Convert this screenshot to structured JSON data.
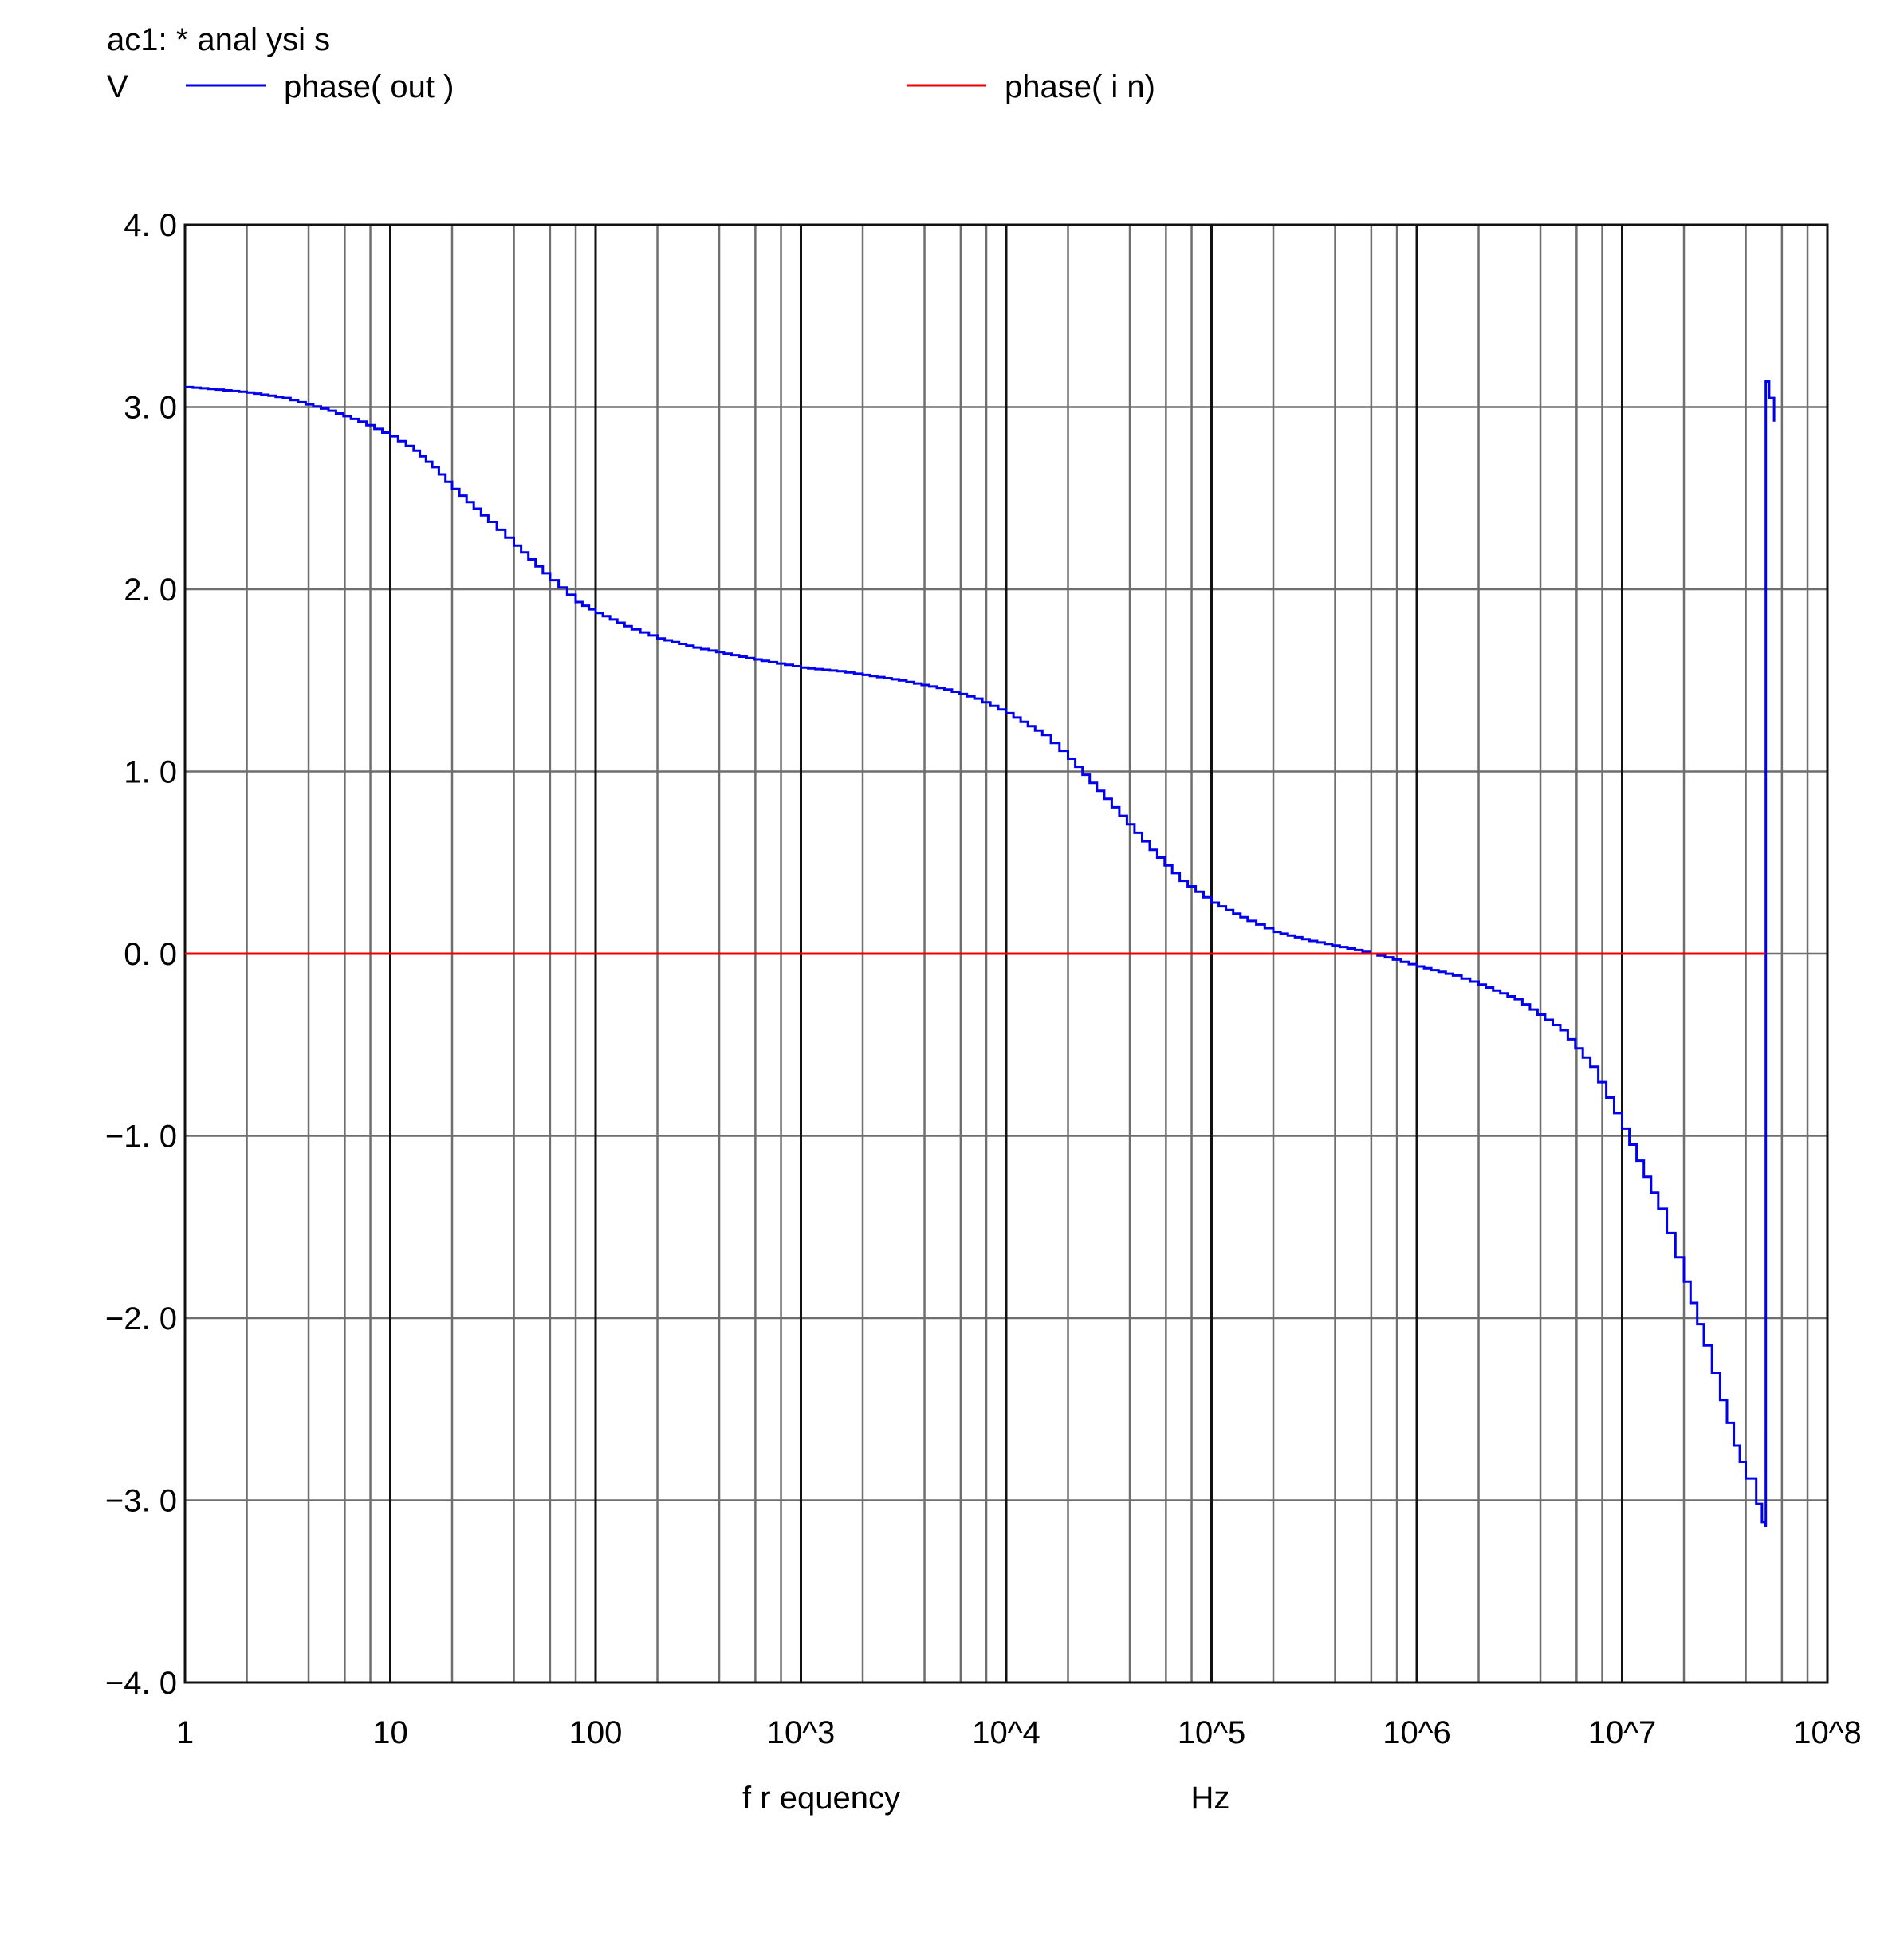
{
  "header": {
    "title": "ac1:  *  anal ysi s",
    "y_unit": "V"
  },
  "chart_data": {
    "type": "line",
    "title": "ac1:  *  anal ysi s",
    "ylabel": "V",
    "xlabel": "f r equency",
    "xunit": "Hz",
    "xscale": "log",
    "xlim": [
      1,
      100000000
    ],
    "ylim": [
      -4.0,
      4.0
    ],
    "grid": true,
    "legend_position": "top",
    "x_tick_values": [
      1,
      10,
      100,
      1000,
      10000,
      100000,
      1000000,
      10000000,
      100000000
    ],
    "x_tick_labels": [
      "1",
      "10",
      "100",
      "10^3",
      "10^4",
      "10^5",
      "10^6",
      "10^7",
      "10^8"
    ],
    "y_tick_values": [
      4.0,
      3.0,
      2.0,
      1.0,
      0.0,
      -1.0,
      -2.0,
      -3.0,
      -4.0
    ],
    "y_tick_labels": [
      "4. 0",
      "3. 0",
      "2. 0",
      "1. 0",
      "0. 0",
      "−1. 0",
      "−2. 0",
      "−3. 0",
      "−4. 0"
    ],
    "series": [
      {
        "name": "phase( out )",
        "color": "#0000ee",
        "stepped": true,
        "x": [
          1,
          1.3,
          2,
          3,
          5,
          7,
          10,
          13,
          16,
          20,
          30,
          40,
          60,
          80,
          100,
          150,
          200,
          300,
          500,
          700,
          1000,
          1500,
          2000,
          3000,
          5000,
          7000,
          10000,
          15000,
          20000,
          30000,
          50000,
          70000,
          100000,
          150000,
          200000,
          300000,
          500000,
          700000,
          1000000,
          1500000,
          2000000,
          3000000,
          5000000,
          7000000,
          10000000,
          15000000,
          20000000,
          25000000,
          30000000,
          35000000,
          40000000,
          45000000,
          48000000,
          50000000,
          50100000,
          52000000,
          55000000
        ],
        "y": [
          3.11,
          3.1,
          3.08,
          3.05,
          2.98,
          2.92,
          2.84,
          2.76,
          2.67,
          2.55,
          2.37,
          2.24,
          2.05,
          1.93,
          1.87,
          1.78,
          1.73,
          1.68,
          1.63,
          1.6,
          1.57,
          1.55,
          1.53,
          1.5,
          1.45,
          1.4,
          1.32,
          1.2,
          1.07,
          0.85,
          0.57,
          0.4,
          0.28,
          0.18,
          0.12,
          0.07,
          0.02,
          -0.02,
          -0.07,
          -0.12,
          -0.17,
          -0.25,
          -0.42,
          -0.62,
          -0.96,
          -1.4,
          -1.8,
          -2.15,
          -2.45,
          -2.7,
          -2.88,
          -3.02,
          -3.12,
          -3.14,
          3.14,
          3.05,
          2.92
        ]
      },
      {
        "name": "phase( i n)",
        "color": "#ee0000",
        "stepped": false,
        "x": [
          1,
          50000000
        ],
        "y": [
          0.0,
          0.0
        ]
      }
    ]
  }
}
